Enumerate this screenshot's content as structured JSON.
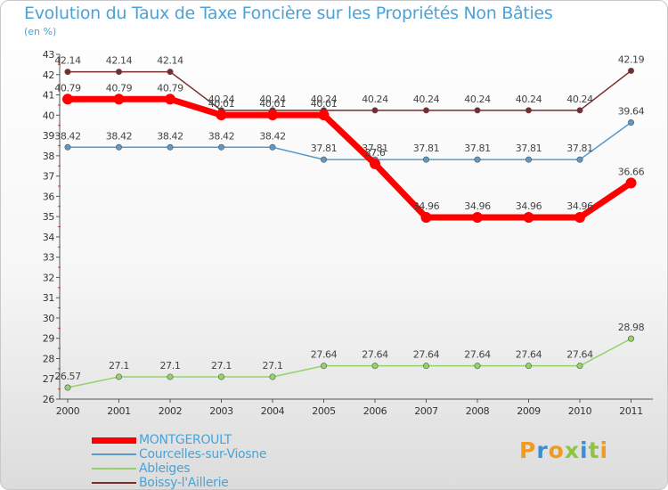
{
  "chart_data": {
    "type": "line",
    "title": "Evolution du Taux de Taxe Foncière sur les Propriétés Non Bâties",
    "subtitle": "(en %)",
    "xlabel": "",
    "ylabel": "",
    "x": [
      "2000",
      "2001",
      "2002",
      "2003",
      "2004",
      "2005",
      "2006",
      "2007",
      "2008",
      "2009",
      "2010",
      "2011"
    ],
    "ylim": [
      26,
      43
    ],
    "yticks": [
      26,
      27,
      28,
      29,
      30,
      31,
      32,
      33,
      34,
      35,
      36,
      37,
      38,
      39,
      40,
      41,
      42,
      43
    ],
    "grid": false,
    "legend_position": "bottom-left",
    "series": [
      {
        "name": "Boissy-l'Aillerie",
        "color": "#7b2b2b",
        "values": [
          42.14,
          42.14,
          42.14,
          40.24,
          40.24,
          40.24,
          40.24,
          40.24,
          40.24,
          40.24,
          40.24,
          42.19
        ],
        "labels": [
          "42.14",
          "42.14",
          "42.14",
          "40.24",
          "40.24",
          "40.24",
          "40.24",
          "40.24",
          "40.24",
          "40.24",
          "40.24",
          "42.19"
        ]
      },
      {
        "name": "Courcelles-sur-Viosne",
        "color": "#5a9acb",
        "values": [
          38.42,
          38.42,
          38.42,
          38.42,
          38.42,
          37.81,
          37.81,
          37.81,
          37.81,
          37.81,
          37.81,
          39.64
        ],
        "labels": [
          "38.42",
          "38.42",
          "38.42",
          "38.42",
          "38.42",
          "37.81",
          "37.81",
          "37.81",
          "37.81",
          "37.81",
          "37.81",
          "39.64"
        ]
      },
      {
        "name": "Ableiges",
        "color": "#94d36a",
        "values": [
          26.57,
          27.1,
          27.1,
          27.1,
          27.1,
          27.64,
          27.64,
          27.64,
          27.64,
          27.64,
          27.64,
          28.98
        ],
        "labels": [
          "26.57",
          "27.1",
          "27.1",
          "27.1",
          "27.1",
          "27.64",
          "27.64",
          "27.64",
          "27.64",
          "27.64",
          "27.64",
          "28.98"
        ]
      },
      {
        "name": "MONTGEROULT",
        "color": "#ff0000",
        "values": [
          40.79,
          40.79,
          40.79,
          40.01,
          40.01,
          40.01,
          37.6,
          34.96,
          34.96,
          34.96,
          34.96,
          36.66
        ],
        "labels": [
          "40.79",
          "40.79",
          "40.79",
          "40.01",
          "40.01",
          "40.01",
          "37.6",
          "34.96",
          "34.96",
          "34.96",
          "34.96",
          "36.66"
        ]
      }
    ],
    "legend": [
      "MONTGEROULT",
      "Courcelles-sur-Viosne",
      "Ableiges",
      "Boissy-l'Aillerie"
    ]
  },
  "logo": {
    "letters": [
      "P",
      "r",
      "o",
      "x",
      "i",
      "t",
      "i"
    ],
    "colors": [
      "#f39a1e",
      "#3a8fd6",
      "#f39a1e",
      "#8cc63f",
      "#3a8fd6",
      "#8cc63f",
      "#f39a1e"
    ]
  }
}
